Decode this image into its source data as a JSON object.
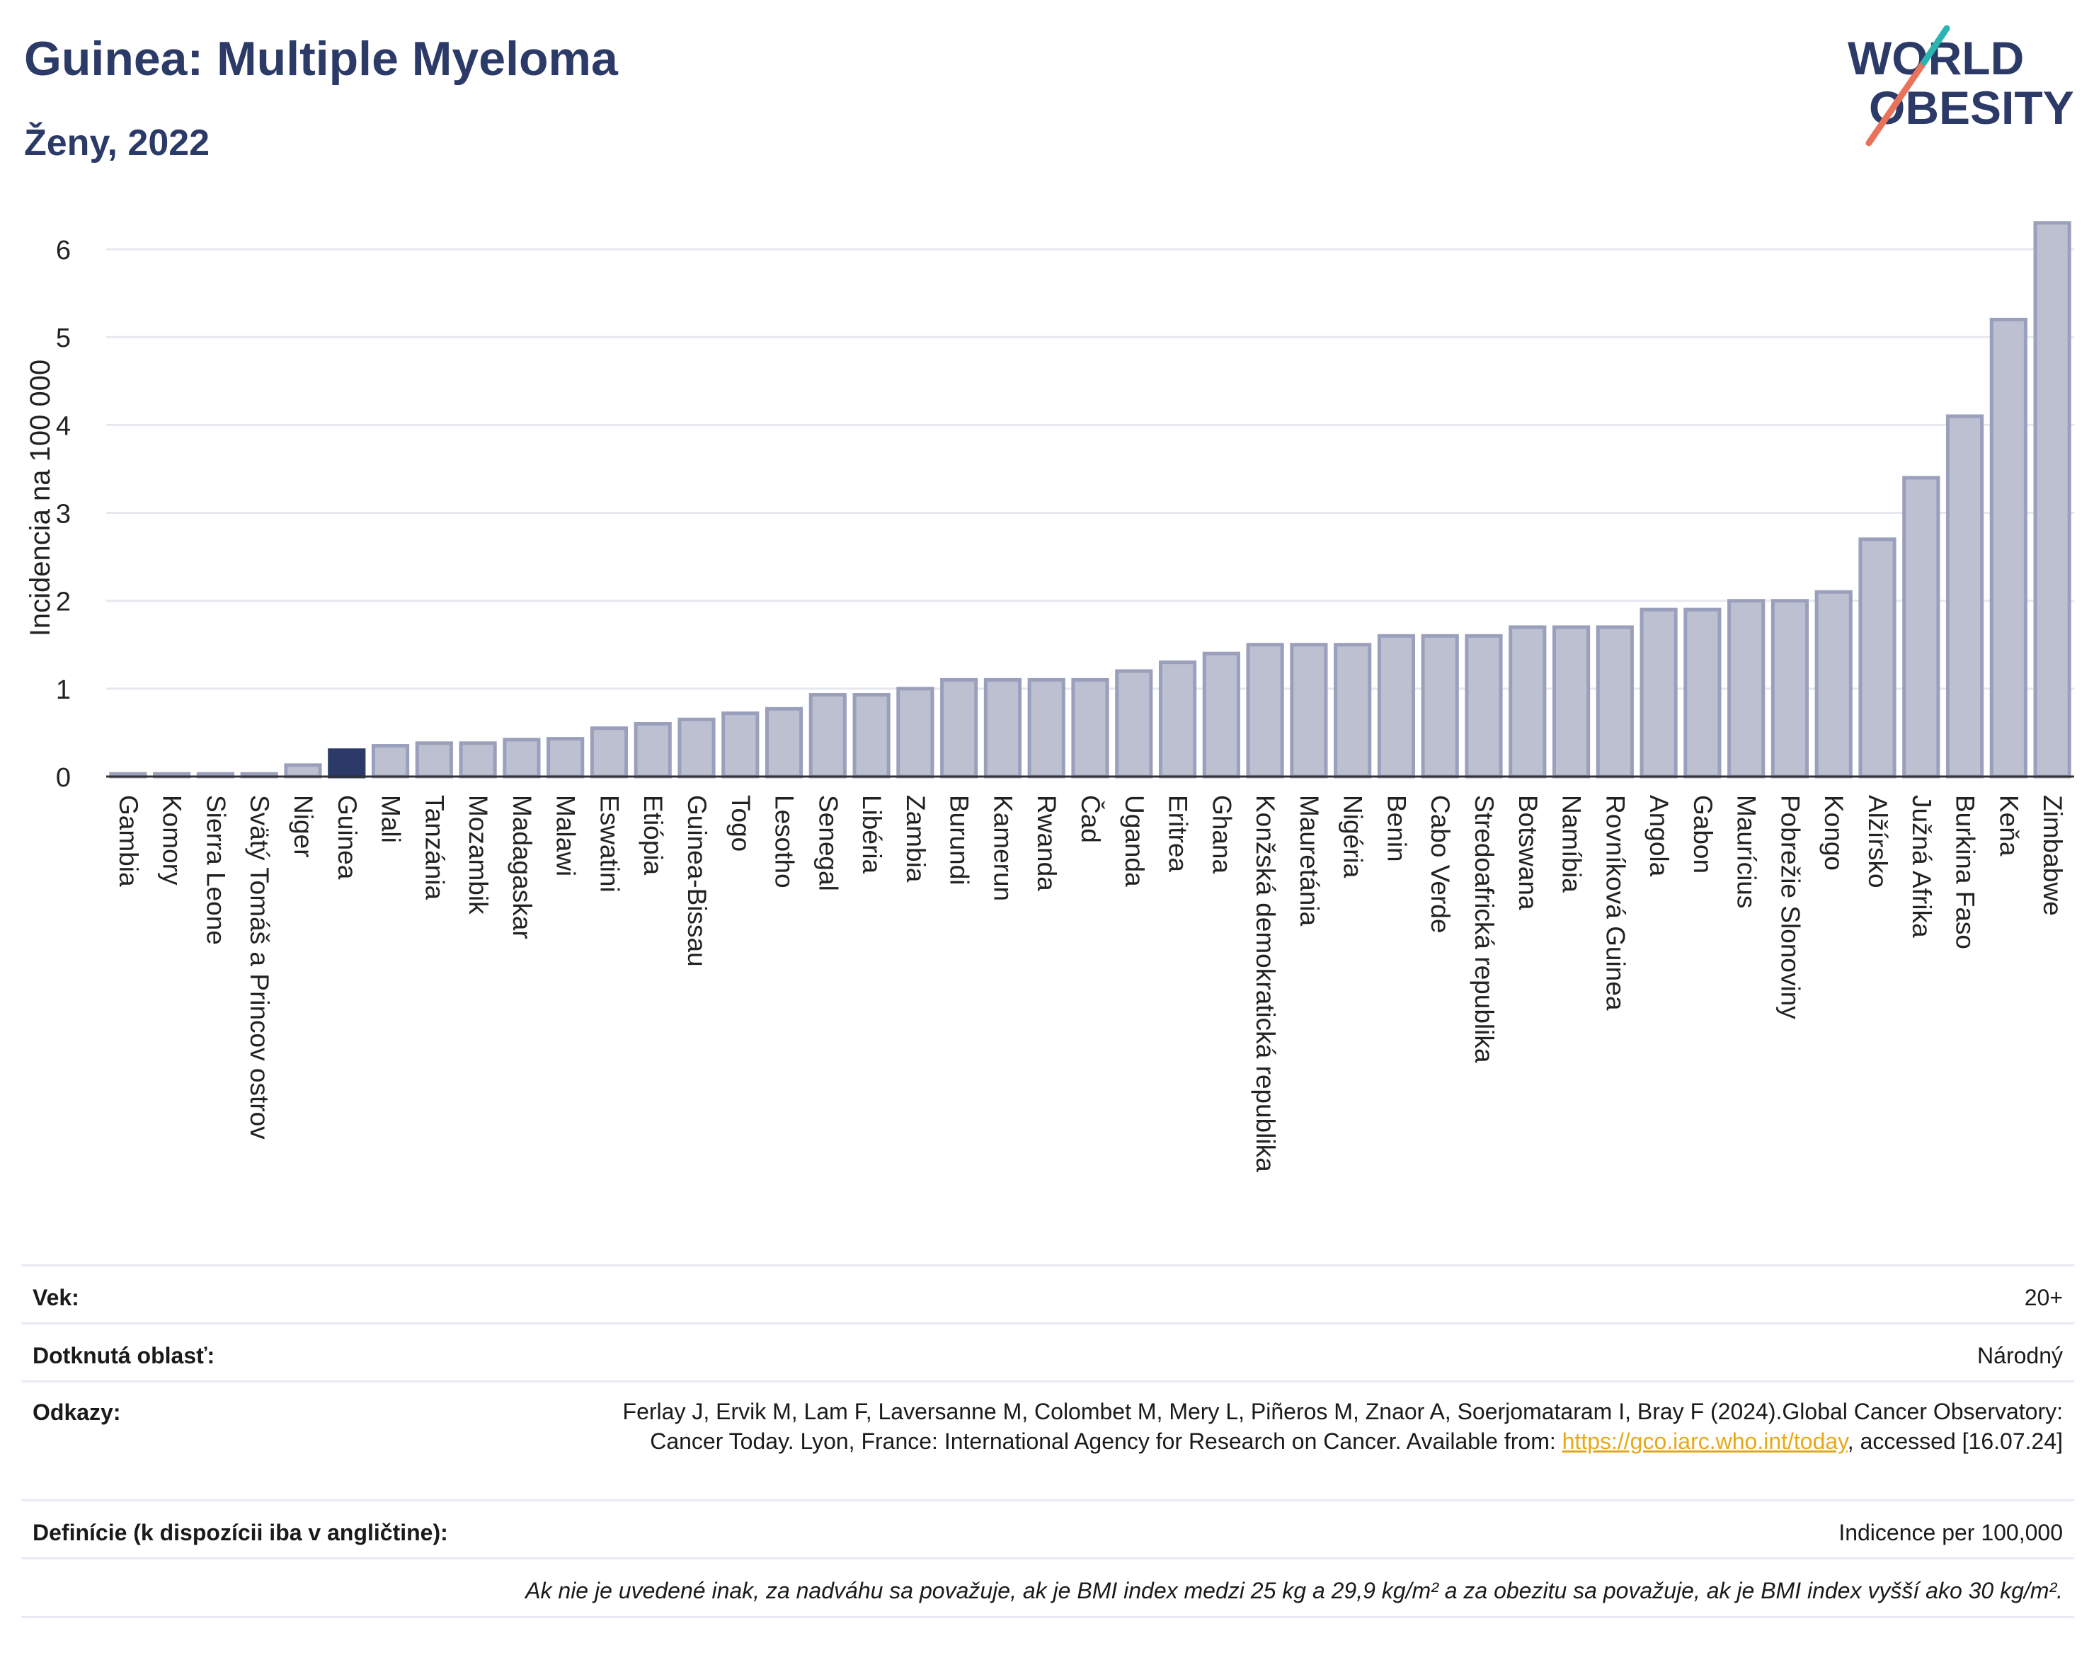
{
  "header": {
    "title": "Guinea: Multiple Myeloma",
    "subtitle": "Ženy, 2022"
  },
  "logo": {
    "line1": "WORLD",
    "line2": "OBESITY",
    "accent": "#e8735a",
    "accent2": "#2bb5b2"
  },
  "colors": {
    "bar": "#bcc0d0",
    "bar_stroke": "#9aa0bb",
    "highlight": "#2b3a67",
    "grid": "#e6e8ef"
  },
  "chart_data": {
    "type": "bar",
    "ylabel": "Incidencia na 100 000",
    "ylim": [
      0,
      6.5
    ],
    "yticks": [
      0,
      1,
      2,
      3,
      4,
      5,
      6
    ],
    "highlight": "Guinea",
    "categories": [
      "Gambia",
      "Komory",
      "Sierra Leone",
      "Svätý Tomáš a Princov ostrov",
      "Niger",
      "Guinea",
      "Mali",
      "Tanzánia",
      "Mozambik",
      "Madagaskar",
      "Malawi",
      "Eswatini",
      "Etiópia",
      "Guinea-Bissau",
      "Togo",
      "Lesotho",
      "Senegal",
      "Libéria",
      "Zambia",
      "Burundi",
      "Kamerun",
      "Rwanda",
      "Čad",
      "Uganda",
      "Eritrea",
      "Ghana",
      "Konžská demokratická republika",
      "Mauretánia",
      "Nigéria",
      "Benin",
      "Cabo Verde",
      "Stredoafrická republika",
      "Botswana",
      "Namíbia",
      "Rovníková Guinea",
      "Angola",
      "Gabon",
      "Maurícius",
      "Pobrežie Slonoviny",
      "Kongo",
      "Alžírsko",
      "Južná Afrika",
      "Burkina Faso",
      "Keňa",
      "Zimbabwe"
    ],
    "values": [
      0.03,
      0.03,
      0.03,
      0.03,
      0.13,
      0.3,
      0.35,
      0.38,
      0.38,
      0.42,
      0.43,
      0.55,
      0.6,
      0.65,
      0.72,
      0.77,
      0.93,
      0.93,
      1.0,
      1.1,
      1.1,
      1.1,
      1.1,
      1.2,
      1.3,
      1.4,
      1.5,
      1.5,
      1.5,
      1.6,
      1.6,
      1.6,
      1.7,
      1.7,
      1.7,
      1.9,
      1.9,
      2.0,
      2.0,
      2.1,
      2.7,
      3.4,
      4.1,
      5.2,
      6.3
    ]
  },
  "info": {
    "age_label": "Vek:",
    "age_value": "20+",
    "area_label": "Dotknutá oblasť:",
    "area_value": "Národný",
    "ref_label": "Odkazy:",
    "ref_text1": "Ferlay J, Ervik M, Lam F, Laversanne M, Colombet M, Mery L, Piñeros M, Znaor A, Soerjomataram I, Bray F (2024).Global Cancer Observatory: Cancer Today. Lyon, France: International Agency for Research on Cancer. Available from: ",
    "ref_link": "https://gco.iarc.who.int/today",
    "ref_text2": ", accessed [16.07.24]",
    "def_label": "Definície (k dispozícii iba v angličtine):",
    "def_value": "Indicence per 100,000",
    "note": "Ak nie je uvedené inak, za nadváhu sa považuje, ak je BMI index medzi 25 kg a 29,9 kg/m² a za obezitu sa považuje, ak je BMI index vyšší ako 30 kg/m²."
  }
}
